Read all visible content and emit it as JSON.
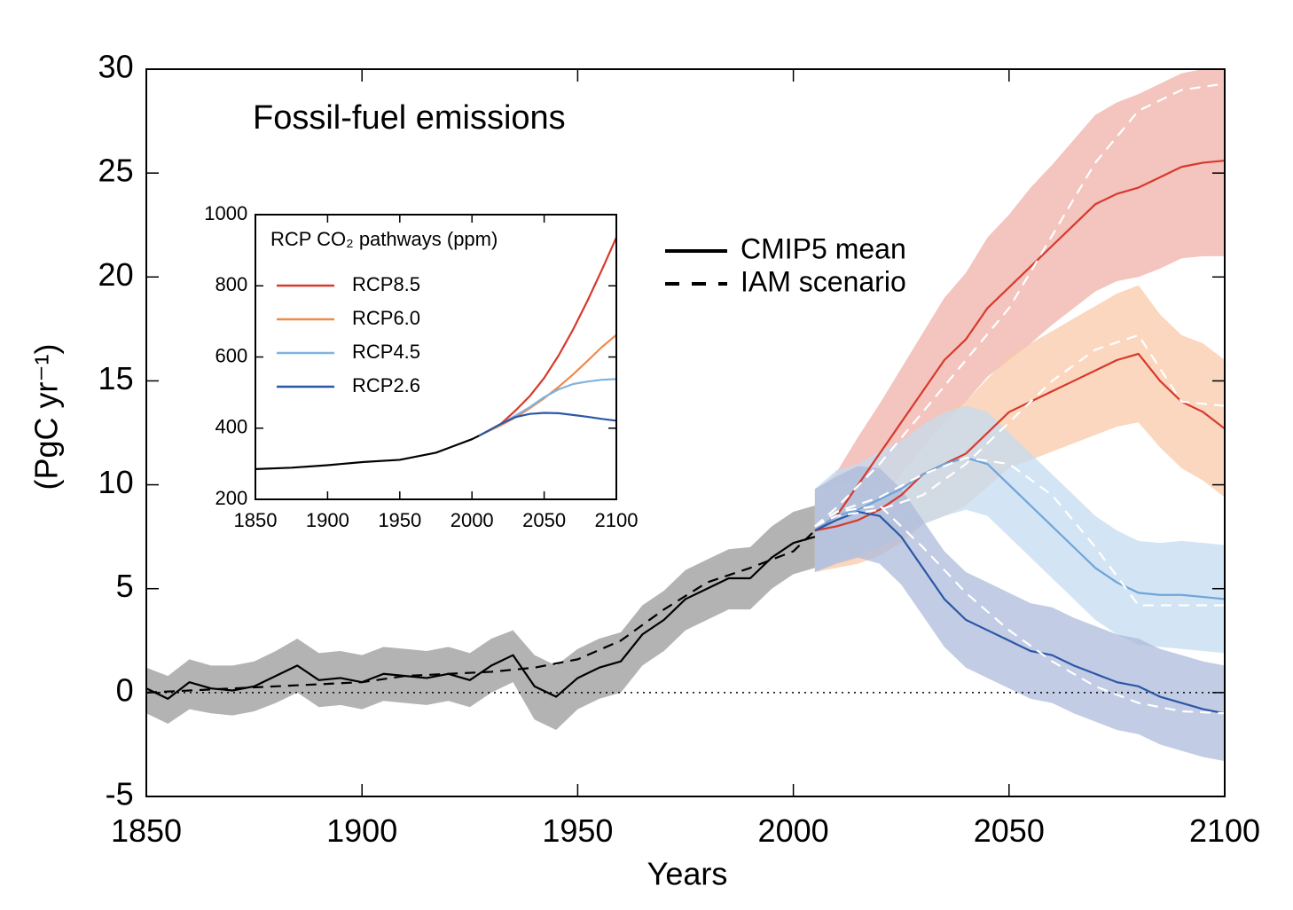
{
  "chart_data": [
    {
      "type": "line",
      "title": "Fossil-fuel emissions",
      "xlabel": "Years",
      "ylabel": "(PgC yr⁻¹)",
      "xlim": [
        1850,
        2100
      ],
      "xticks": [
        1850,
        1900,
        1950,
        2000,
        2050,
        2100
      ],
      "ylim": [
        -5,
        30
      ],
      "yticks": [
        -5,
        0,
        5,
        10,
        15,
        20,
        25,
        30
      ],
      "zero_line": true,
      "legend_styles": [
        {
          "label": "CMIP5 mean",
          "dash": false
        },
        {
          "label": "IAM scenario",
          "dash": true
        }
      ],
      "series": [
        {
          "color": "#000000",
          "band_color": "#9a9a9a",
          "dash": false,
          "x": [
            1850,
            1855,
            1860,
            1865,
            1870,
            1875,
            1880,
            1885,
            1890,
            1895,
            1900,
            1905,
            1910,
            1915,
            1920,
            1925,
            1930,
            1935,
            1940,
            1945,
            1950,
            1955,
            1960,
            1965,
            1970,
            1975,
            1980,
            1985,
            1990,
            1995,
            2000,
            2005
          ],
          "values": [
            0.2,
            -0.3,
            0.5,
            0.2,
            0.1,
            0.3,
            0.8,
            1.3,
            0.6,
            0.7,
            0.5,
            0.9,
            0.8,
            0.7,
            0.9,
            0.6,
            1.3,
            1.8,
            0.3,
            -0.2,
            0.7,
            1.2,
            1.5,
            2.8,
            3.5,
            4.5,
            5.0,
            5.5,
            5.5,
            6.5,
            7.2,
            7.5
          ],
          "lower": [
            -1.0,
            -1.5,
            -0.8,
            -1.0,
            -1.1,
            -0.9,
            -0.5,
            0.0,
            -0.7,
            -0.6,
            -0.8,
            -0.4,
            -0.5,
            -0.6,
            -0.4,
            -0.7,
            0.0,
            0.5,
            -1.3,
            -1.8,
            -0.8,
            -0.3,
            0.0,
            1.3,
            2.0,
            3.0,
            3.5,
            4.0,
            4.0,
            5.0,
            5.7,
            6.0
          ],
          "upper": [
            1.2,
            0.8,
            1.6,
            1.3,
            1.3,
            1.5,
            2.0,
            2.6,
            1.9,
            2.0,
            1.8,
            2.2,
            2.1,
            2.0,
            2.2,
            1.9,
            2.6,
            3.0,
            1.8,
            1.3,
            2.1,
            2.6,
            2.9,
            4.2,
            4.9,
            5.9,
            6.4,
            6.9,
            7.0,
            8.0,
            8.7,
            9.0
          ]
        },
        {
          "color": "#000000",
          "dash": true,
          "x": [
            1850,
            1860,
            1870,
            1880,
            1890,
            1900,
            1910,
            1920,
            1930,
            1940,
            1950,
            1960,
            1970,
            1980,
            1990,
            2000,
            2005
          ],
          "values": [
            0.0,
            0.1,
            0.2,
            0.3,
            0.4,
            0.5,
            0.8,
            0.9,
            1.0,
            1.2,
            1.6,
            2.5,
            4.0,
            5.3,
            6.0,
            6.8,
            7.8
          ]
        },
        {
          "color": "#d7392c",
          "band_color": "#f0b0a8",
          "dash": false,
          "x": [
            2005,
            2010,
            2015,
            2020,
            2025,
            2030,
            2035,
            2040,
            2045,
            2050,
            2055,
            2060,
            2065,
            2070,
            2075,
            2080,
            2085,
            2090,
            2095,
            2100
          ],
          "values": [
            7.8,
            8.5,
            10,
            11.5,
            13,
            14.5,
            16,
            17,
            18.5,
            19.5,
            20.5,
            21.5,
            22.5,
            23.5,
            24,
            24.3,
            24.8,
            25.3,
            25.5,
            25.6
          ],
          "lower": [
            6,
            6.5,
            7.8,
            9.2,
            10.5,
            11.8,
            13,
            14,
            15.2,
            16,
            16.8,
            17.7,
            18.5,
            19.3,
            19.8,
            20,
            20.4,
            20.9,
            21,
            21
          ],
          "upper": [
            9.6,
            10.6,
            12.3,
            13.9,
            15.6,
            17.3,
            19,
            20.2,
            21.9,
            23,
            24.3,
            25.4,
            26.6,
            27.8,
            28.4,
            28.8,
            29.3,
            29.8,
            30,
            30
          ]
        },
        {
          "color": "#d7392c",
          "band_color": "#f8caa8",
          "dash": false,
          "hidden": false,
          "x": [
            2005,
            2010,
            2015,
            2020,
            2025,
            2030,
            2035,
            2040,
            2045,
            2050,
            2055,
            2060,
            2065,
            2070,
            2075,
            2080,
            2085,
            2090,
            2095,
            2100
          ],
          "values": [
            7.8,
            8,
            8.3,
            8.8,
            9.5,
            10.5,
            11,
            11.5,
            12.5,
            13.5,
            14,
            14.5,
            15,
            15.5,
            16,
            16.3,
            15,
            14,
            13.5,
            12.7
          ],
          "lower": [
            5.8,
            6,
            6.2,
            6.6,
            7.2,
            8.1,
            8.5,
            9,
            9.9,
            10.8,
            11.2,
            11.6,
            12,
            12.4,
            12.8,
            13,
            11.8,
            10.8,
            10.2,
            9.4
          ],
          "upper": [
            9.8,
            10,
            10.4,
            11,
            11.8,
            12.9,
            13.5,
            14,
            15.1,
            16.2,
            16.8,
            17.4,
            18,
            18.6,
            19.2,
            19.6,
            18.2,
            17.2,
            16.8,
            16
          ]
        },
        {
          "color": "#6ea5da",
          "band_color": "#c4dbf0",
          "dash": false,
          "x": [
            2005,
            2010,
            2015,
            2020,
            2025,
            2030,
            2035,
            2040,
            2045,
            2050,
            2055,
            2060,
            2065,
            2070,
            2075,
            2080,
            2085,
            2090,
            2095,
            2100
          ],
          "values": [
            7.8,
            8.5,
            8.8,
            9.3,
            9.8,
            10.5,
            11,
            11.3,
            11,
            10,
            9,
            8,
            7,
            6,
            5.3,
            4.8,
            4.7,
            4.7,
            4.6,
            4.5
          ],
          "lower": [
            5.8,
            6.3,
            6.6,
            7,
            7.5,
            8.1,
            8.5,
            8.8,
            8.5,
            7.5,
            6.5,
            5.5,
            4.5,
            3.5,
            2.8,
            2.3,
            2.2,
            2.1,
            2,
            1.9
          ],
          "upper": [
            9.8,
            10.7,
            11,
            11.6,
            12.1,
            12.9,
            13.5,
            13.8,
            13.5,
            12.5,
            11.5,
            10.5,
            9.5,
            8.5,
            7.8,
            7.3,
            7.2,
            7.3,
            7.2,
            7.1
          ]
        },
        {
          "color": "#2b57a7",
          "band_color": "#aebbdb",
          "dash": false,
          "x": [
            2005,
            2010,
            2015,
            2020,
            2025,
            2030,
            2035,
            2040,
            2045,
            2050,
            2055,
            2060,
            2065,
            2070,
            2075,
            2080,
            2085,
            2090,
            2095,
            2100
          ],
          "values": [
            7.8,
            8.3,
            8.7,
            8.5,
            7.5,
            6,
            4.5,
            3.5,
            3,
            2.5,
            2,
            1.8,
            1.3,
            0.9,
            0.5,
            0.3,
            -0.2,
            -0.5,
            -0.8,
            -1.0
          ],
          "lower": [
            5.8,
            6.2,
            6.5,
            6.2,
            5.2,
            3.7,
            2.2,
            1.2,
            0.7,
            0.2,
            -0.3,
            -0.5,
            -1,
            -1.4,
            -1.8,
            -2,
            -2.5,
            -2.8,
            -3.1,
            -3.3
          ],
          "upper": [
            9.8,
            10.4,
            10.9,
            10.8,
            9.8,
            8.3,
            6.8,
            5.8,
            5.3,
            4.8,
            4.3,
            4.1,
            3.6,
            3.2,
            2.8,
            2.6,
            2.1,
            1.8,
            1.5,
            1.3
          ]
        },
        {
          "color": "#ffffff",
          "dash": true,
          "x": [
            2005,
            2010,
            2020,
            2030,
            2040,
            2050,
            2060,
            2070,
            2080,
            2090,
            2100
          ],
          "values": [
            8,
            8.9,
            11,
            13.5,
            16,
            18.5,
            22,
            25.5,
            28,
            29,
            29.3
          ]
        },
        {
          "color": "#ffffff",
          "dash": true,
          "x": [
            2005,
            2010,
            2020,
            2030,
            2040,
            2050,
            2060,
            2070,
            2080,
            2090,
            2100
          ],
          "values": [
            8,
            8.5,
            8.8,
            9.5,
            11,
            13,
            15,
            16.5,
            17.2,
            14,
            13.8
          ]
        },
        {
          "color": "#ffffff",
          "dash": true,
          "x": [
            2005,
            2010,
            2020,
            2030,
            2040,
            2050,
            2060,
            2070,
            2080,
            2090,
            2100
          ],
          "values": [
            8,
            8.7,
            9.4,
            10.5,
            11.3,
            11,
            9.5,
            7,
            4.2,
            4.2,
            4.2
          ]
        },
        {
          "color": "#ffffff",
          "dash": true,
          "x": [
            2005,
            2010,
            2020,
            2030,
            2040,
            2050,
            2060,
            2070,
            2080,
            2090,
            2100
          ],
          "values": [
            8,
            8.7,
            9,
            7,
            4.8,
            3,
            1.5,
            0.3,
            -0.5,
            -0.9,
            -1
          ]
        }
      ]
    },
    {
      "type": "line",
      "title": "RCP CO₂ pathways (ppm)",
      "xlim": [
        1850,
        2100
      ],
      "xticks": [
        1850,
        1900,
        1950,
        2000,
        2050,
        2100
      ],
      "ylim": [
        200,
        1000
      ],
      "yticks": [
        200,
        400,
        600,
        800,
        1000
      ],
      "legend": "upper left",
      "series": [
        {
          "color": "#000000",
          "dash": false,
          "x": [
            1850,
            1875,
            1900,
            1925,
            1950,
            1975,
            2000,
            2005
          ],
          "values": [
            285,
            289,
            296,
            305,
            311,
            331,
            369,
            379
          ]
        },
        {
          "name": "RCP8.5",
          "color": "#d7392c",
          "dash": false,
          "x": [
            2005,
            2020,
            2030,
            2040,
            2050,
            2060,
            2070,
            2080,
            2090,
            2100
          ],
          "values": [
            379,
            412,
            449,
            490,
            541,
            604,
            677,
            758,
            845,
            936
          ]
        },
        {
          "name": "RCP6.0",
          "color": "#f08a4b",
          "dash": false,
          "x": [
            2005,
            2020,
            2030,
            2040,
            2050,
            2060,
            2070,
            2080,
            2090,
            2100
          ],
          "values": [
            379,
            408,
            430,
            456,
            484,
            516,
            551,
            589,
            628,
            662
          ]
        },
        {
          "name": "RCP4.5",
          "color": "#7fb3df",
          "dash": false,
          "x": [
            2005,
            2020,
            2030,
            2040,
            2050,
            2060,
            2070,
            2080,
            2090,
            2100
          ],
          "values": [
            379,
            411,
            435,
            459,
            487,
            509,
            524,
            531,
            536,
            538
          ]
        },
        {
          "name": "RCP2.6",
          "color": "#2b57a7",
          "dash": false,
          "x": [
            2005,
            2020,
            2030,
            2040,
            2050,
            2060,
            2070,
            2080,
            2090,
            2100
          ],
          "values": [
            379,
            412,
            431,
            440,
            443,
            442,
            437,
            432,
            426,
            421
          ]
        }
      ]
    }
  ]
}
